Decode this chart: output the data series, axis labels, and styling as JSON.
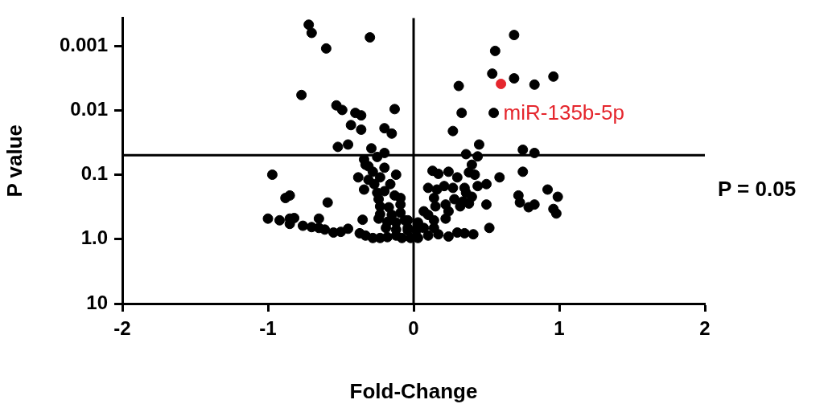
{
  "chart_data": {
    "type": "scatter",
    "xlabel": "Fold-Change",
    "ylabel": "P value",
    "log": "y",
    "xlim": [
      -2,
      2
    ],
    "xticks": [
      -2,
      -1,
      0,
      1,
      2
    ],
    "ylim": [
      10,
      0.00037
    ],
    "yticks": [
      0.001,
      0.01,
      0.1,
      {
        "value": 1,
        "label": "1.0"
      },
      10
    ],
    "grid": false,
    "legend": false,
    "marker": "circle",
    "series": [
      {
        "color": "#000000",
        "x": [
          -0.72,
          -0.7,
          -0.6,
          -0.3,
          -0.77,
          -0.53,
          -0.49,
          -0.4,
          -0.36,
          -0.13,
          -0.43,
          -0.36,
          -0.2,
          -0.15,
          -0.52,
          -0.45,
          -0.29,
          -0.2,
          -0.25,
          -0.34,
          -0.33,
          0.69,
          0.56,
          0.54,
          0.69,
          0.83,
          0.96,
          0.31,
          0.33,
          0.55,
          0.27,
          0.45,
          0.36,
          0.44,
          0.75,
          0.83,
          0.92,
          0.99,
          0.96,
          0.98,
          0.72,
          0.73,
          0.79,
          0.83,
          0.75,
          0.59,
          0.5,
          0.5,
          0.52,
          0.41,
          0.35,
          0.3,
          0.24,
          0.4,
          0.38,
          0.42,
          0.3,
          0.24,
          0.13,
          0.17,
          0.44,
          0.1,
          0.16,
          0.21,
          0.27,
          0.35,
          0.36,
          0.4,
          0.14,
          0.28,
          0.34,
          0.32,
          0.38,
          0.22,
          0.15,
          0.24,
          0.22,
          0.07,
          0.1,
          0.14,
          -0.04,
          0.03,
          0.07,
          0.14,
          0.17,
          0.1,
          -0.04,
          0.03,
          -0.02,
          -0.97,
          -0.88,
          -0.85,
          -0.59,
          -1.0,
          -0.92,
          -0.85,
          -0.82,
          -0.85,
          -0.76,
          -0.7,
          -0.65,
          -0.65,
          -0.61,
          -0.55,
          -0.5,
          -0.45,
          -0.35,
          -0.37,
          -0.33,
          -0.28,
          -0.23,
          -0.18,
          -0.12,
          -0.08,
          -0.31,
          -0.28,
          -0.2,
          -0.38,
          -0.31,
          -0.27,
          -0.23,
          -0.16,
          -0.12,
          -0.34,
          -0.25,
          -0.2,
          -0.13,
          -0.09,
          -0.24,
          -0.23,
          -0.17,
          -0.09,
          -0.23,
          -0.15,
          -0.09,
          -0.24,
          -0.18,
          -0.12,
          -0.06,
          -0.19,
          -0.12,
          -0.04,
          0.02
        ],
        "values": [
          0.00047,
          0.00063,
          0.0011,
          0.00074,
          0.0058,
          0.0084,
          0.0099,
          0.011,
          0.012,
          0.0096,
          0.017,
          0.02,
          0.019,
          0.023,
          0.037,
          0.034,
          0.039,
          0.046,
          0.053,
          0.058,
          0.07,
          0.00068,
          0.0012,
          0.0027,
          0.0032,
          0.004,
          0.003,
          0.0042,
          0.011,
          0.011,
          0.021,
          0.034,
          0.048,
          0.052,
          0.041,
          0.046,
          0.17,
          0.22,
          0.34,
          0.4,
          0.21,
          0.27,
          0.32,
          0.29,
          0.09,
          0.11,
          0.14,
          0.29,
          0.67,
          0.84,
          0.81,
          0.79,
          0.91,
          0.07,
          0.092,
          0.1,
          0.11,
          0.09,
          0.087,
          0.097,
          0.15,
          0.16,
          0.17,
          0.15,
          0.16,
          0.16,
          0.19,
          0.22,
          0.23,
          0.24,
          0.26,
          0.31,
          0.28,
          0.29,
          0.31,
          0.37,
          0.48,
          0.37,
          0.42,
          0.51,
          0.51,
          0.55,
          0.67,
          0.67,
          0.84,
          0.88,
          0.73,
          0.96,
          0.96,
          0.1,
          0.23,
          0.21,
          0.27,
          0.48,
          0.51,
          0.48,
          0.47,
          0.58,
          0.62,
          0.65,
          0.48,
          0.67,
          0.71,
          0.79,
          0.77,
          0.69,
          0.5,
          0.81,
          0.88,
          0.96,
          0.96,
          0.93,
          0.88,
          0.96,
          0.074,
          0.09,
          0.078,
          0.11,
          0.12,
          0.14,
          0.11,
          0.14,
          0.1,
          0.17,
          0.19,
          0.18,
          0.21,
          0.23,
          0.24,
          0.31,
          0.32,
          0.29,
          0.41,
          0.42,
          0.39,
          0.48,
          0.54,
          0.55,
          0.51,
          0.67,
          0.71,
          0.67,
          0.73
        ]
      },
      {
        "color": "#e5262d",
        "x": [
          0.6
        ],
        "values": [
          0.0039
        ]
      }
    ],
    "ref_lines": [
      {
        "axis": "x",
        "value": 0
      },
      {
        "axis": "y",
        "value": 0.05,
        "label": "P = 0.05"
      }
    ],
    "annotations": [
      {
        "text": "miR-135b-5p",
        "x": 0.6,
        "y": 0.0039
      }
    ]
  }
}
